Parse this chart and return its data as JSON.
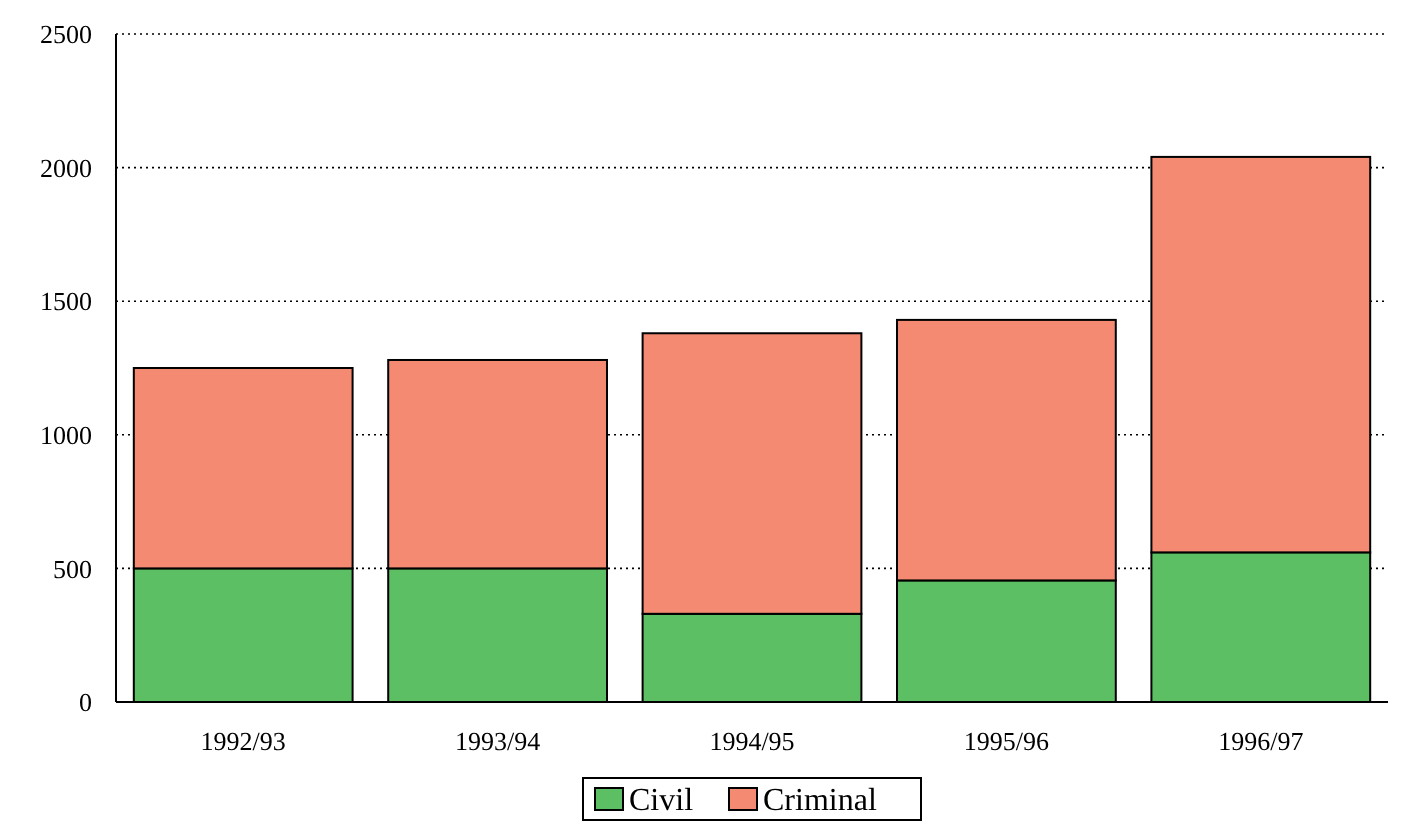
{
  "chart_data": {
    "type": "bar",
    "stacked": true,
    "categories": [
      "1992/93",
      "1993/94",
      "1994/95",
      "1995/96",
      "1996/97"
    ],
    "series": [
      {
        "name": "Civil",
        "color": "#5dbf63",
        "values": [
          500,
          500,
          330,
          455,
          560
        ]
      },
      {
        "name": "Criminal",
        "color": "#f48a72",
        "values": [
          750,
          780,
          1050,
          975,
          1480
        ]
      }
    ],
    "ylim": [
      0,
      2500
    ],
    "yticks": [
      0,
      500,
      1000,
      1500,
      2000,
      2500
    ],
    "grid": "y",
    "legend": "bottom"
  }
}
